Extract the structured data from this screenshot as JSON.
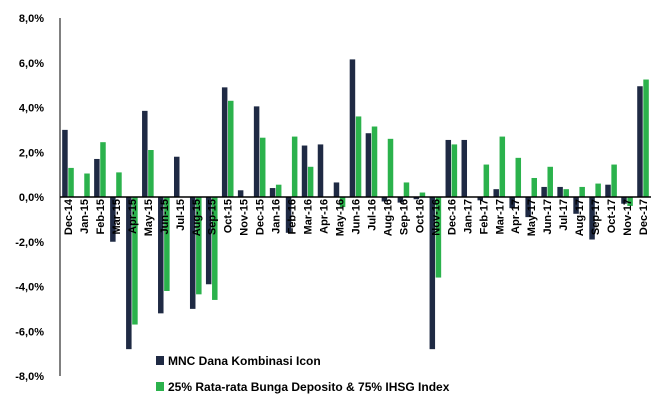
{
  "chart_data": {
    "type": "bar",
    "ylim": [
      -8,
      8
    ],
    "ytick_step": 2,
    "ytick_labels": [
      "8,0%",
      "6,0%",
      "4,0%",
      "2,0%",
      "0,0%",
      "-2,0%",
      "-4,0%",
      "-6,0%",
      "-8,0%"
    ],
    "categories": [
      "Dec-14",
      "Jan-15",
      "Feb-15",
      "Mar-15",
      "Apr-15",
      "May-15",
      "Jun-15",
      "Jul-15",
      "Aug-15",
      "Sep-15",
      "Oct-15",
      "Nov-15",
      "Dec-15",
      "Jan-16",
      "Feb-16",
      "Mar-16",
      "Apr-16",
      "May-16",
      "Jun-16",
      "Jul-16",
      "Aug-16",
      "Sep-16",
      "Oct-16",
      "Nov-16",
      "Dec-16",
      "Jan-17",
      "Feb-17",
      "Mar-17",
      "Apr-17",
      "May-17",
      "Jun-17",
      "Jul-17",
      "Aug-17",
      "Sep-17",
      "Oct-17",
      "Nov-17",
      "Dec-17"
    ],
    "series": [
      {
        "name": "MNC Dana Kombinasi Icon",
        "color": "#1f2a44",
        "values": [
          3.0,
          0.0,
          1.7,
          -2.0,
          -6.8,
          3.85,
          -5.2,
          1.8,
          -5.0,
          -3.9,
          4.9,
          0.3,
          4.05,
          0.4,
          -1.6,
          2.3,
          2.35,
          0.65,
          6.15,
          2.85,
          -0.2,
          -0.25,
          -0.1,
          -6.8,
          2.55,
          2.55,
          -0.15,
          0.35,
          -0.5,
          -0.9,
          0.45,
          0.45,
          -0.75,
          -1.9,
          0.55,
          -0.3,
          4.95
        ]
      },
      {
        "name": "25% Rata-rata Bunga Deposito & 75% IHSG Index",
        "color": "#2bb24c",
        "values": [
          1.3,
          1.05,
          2.45,
          1.1,
          -5.7,
          2.1,
          -4.2,
          0.0,
          -4.35,
          -4.6,
          4.3,
          0.0,
          2.65,
          0.55,
          2.7,
          1.35,
          0.0,
          -0.45,
          3.6,
          3.15,
          2.6,
          0.65,
          0.2,
          -3.6,
          2.35,
          0.0,
          1.45,
          2.7,
          1.75,
          0.85,
          1.35,
          0.35,
          0.45,
          0.6,
          1.45,
          -0.4,
          5.25
        ]
      }
    ]
  }
}
